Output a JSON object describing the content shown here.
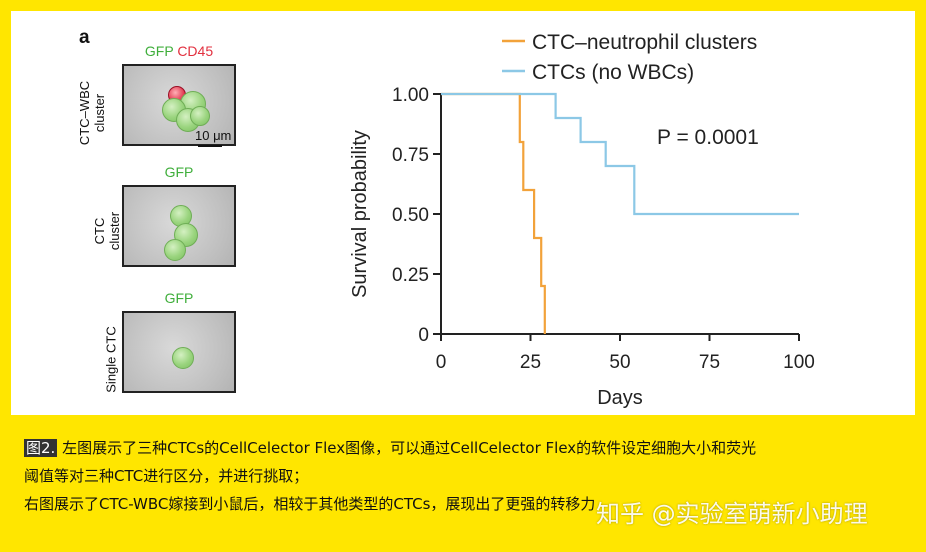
{
  "panel_letter": "a",
  "images": [
    {
      "title_green": "GFP",
      "title_red": "CD45",
      "side_label": "CTC–WBC\ncluster",
      "scalebar": "10 μm"
    },
    {
      "title_green": "GFP",
      "title_red": "",
      "side_label": "CTC\ncluster",
      "scalebar": ""
    },
    {
      "title_green": "GFP",
      "title_red": "",
      "side_label": "Single CTC",
      "scalebar": ""
    }
  ],
  "chart_data": {
    "type": "line",
    "title": "",
    "xlabel": "Days",
    "ylabel": "Survival probability",
    "xlim": [
      0,
      100
    ],
    "ylim": [
      0,
      1
    ],
    "xticks": [
      "0",
      "25",
      "50",
      "75",
      "100"
    ],
    "yticks": [
      "0",
      "0.25",
      "0.50",
      "0.75",
      "1.00"
    ],
    "annotation": "P = 0.0001",
    "legend_position": "top",
    "series": [
      {
        "name": "CTC–neutrophil clusters",
        "color": "#f2a23a",
        "x": [
          0,
          22,
          22,
          23,
          23,
          26,
          26,
          28,
          28,
          29,
          29
        ],
        "y": [
          1.0,
          1.0,
          0.8,
          0.8,
          0.6,
          0.6,
          0.4,
          0.4,
          0.2,
          0.2,
          0.0
        ]
      },
      {
        "name": "CTCs (no WBCs)",
        "color": "#8cc8e6",
        "x": [
          0,
          32,
          32,
          39,
          39,
          46,
          46,
          54,
          54,
          100
        ],
        "y": [
          1.0,
          1.0,
          0.9,
          0.9,
          0.8,
          0.8,
          0.7,
          0.7,
          0.5,
          0.5
        ]
      }
    ]
  },
  "caption": {
    "fig_tag": "图2.",
    "line1": "左图展示了三种CTCs的CellCelector Flex图像，可以通过CellCelector Flex的软件设定细胞大小和荧光",
    "line2": "阈值等对三种CTC进行区分，并进行挑取；",
    "line3": "右图展示了CTC-WBC嫁接到小鼠后，相较于其他类型的CTCs，展现出了更强的转移力"
  },
  "watermark": "知乎 @实验室萌新小助理"
}
